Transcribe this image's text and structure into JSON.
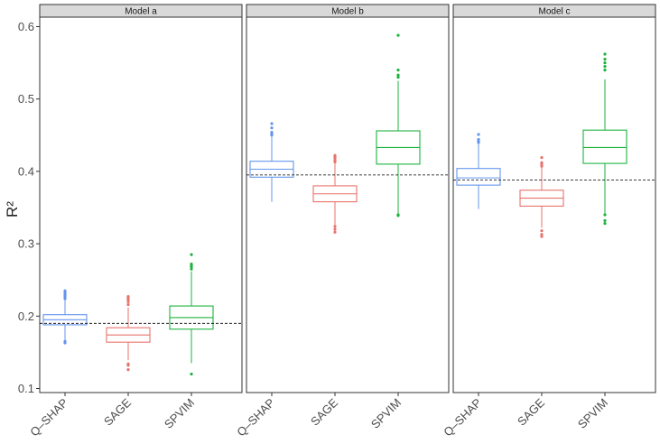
{
  "chart_data": {
    "type": "boxplot",
    "ylabel": "R²",
    "ylim": [
      0.1,
      0.6
    ],
    "yticks": [
      "0.1",
      "0.2",
      "0.3",
      "0.4",
      "0.5",
      "0.6"
    ],
    "categories": [
      "Q–SHAP",
      "SAGE",
      "SPVIM"
    ],
    "colors": {
      "Q–SHAP": "#6495ED",
      "SAGE": "#E8736C",
      "SPVIM": "#1DB33E"
    },
    "reference_line_style": "dashed",
    "panels": [
      {
        "title": "Model a",
        "reference": 0.19,
        "boxes": [
          {
            "category": "Q–SHAP",
            "q1": 0.188,
            "median": 0.195,
            "q3": 0.202,
            "whisker_low": 0.166,
            "whisker_high": 0.222,
            "outliers": [
              0.163,
              0.165,
              0.224,
              0.226,
              0.228,
              0.23,
              0.232,
              0.235
            ]
          },
          {
            "category": "SAGE",
            "q1": 0.164,
            "median": 0.174,
            "q3": 0.184,
            "whisker_low": 0.139,
            "whisker_high": 0.212,
            "outliers": [
              0.126,
              0.132,
              0.134,
              0.216,
              0.22,
              0.223,
              0.225,
              0.227
            ]
          },
          {
            "category": "SPVIM",
            "q1": 0.182,
            "median": 0.198,
            "q3": 0.214,
            "whisker_low": 0.135,
            "whisker_high": 0.262,
            "outliers": [
              0.12,
              0.265,
              0.268,
              0.27,
              0.272,
              0.285
            ]
          }
        ]
      },
      {
        "title": "Model b",
        "reference": 0.395,
        "boxes": [
          {
            "category": "Q–SHAP",
            "q1": 0.392,
            "median": 0.403,
            "q3": 0.414,
            "whisker_low": 0.358,
            "whisker_high": 0.448,
            "outliers": [
              0.45,
              0.452,
              0.454,
              0.46,
              0.466
            ]
          },
          {
            "category": "SAGE",
            "q1": 0.358,
            "median": 0.369,
            "q3": 0.38,
            "whisker_low": 0.326,
            "whisker_high": 0.411,
            "outliers": [
              0.316,
              0.32,
              0.324,
              0.413,
              0.415,
              0.418,
              0.42,
              0.422
            ]
          },
          {
            "category": "SPVIM",
            "q1": 0.41,
            "median": 0.433,
            "q3": 0.456,
            "whisker_low": 0.341,
            "whisker_high": 0.525,
            "outliers": [
              0.339,
              0.34,
              0.53,
              0.533,
              0.54,
              0.588
            ]
          }
        ]
      },
      {
        "title": "Model c",
        "reference": 0.388,
        "boxes": [
          {
            "category": "Q–SHAP",
            "q1": 0.381,
            "median": 0.391,
            "q3": 0.404,
            "whisker_low": 0.348,
            "whisker_high": 0.438,
            "outliers": [
              0.44,
              0.442,
              0.444,
              0.451
            ]
          },
          {
            "category": "SAGE",
            "q1": 0.352,
            "median": 0.363,
            "q3": 0.374,
            "whisker_low": 0.322,
            "whisker_high": 0.405,
            "outliers": [
              0.31,
              0.313,
              0.318,
              0.407,
              0.41,
              0.412,
              0.419
            ]
          },
          {
            "category": "SPVIM",
            "q1": 0.411,
            "median": 0.433,
            "q3": 0.457,
            "whisker_low": 0.342,
            "whisker_high": 0.527,
            "outliers": [
              0.328,
              0.332,
              0.34,
              0.54,
              0.545,
              0.55,
              0.555,
              0.562
            ]
          }
        ]
      }
    ]
  }
}
